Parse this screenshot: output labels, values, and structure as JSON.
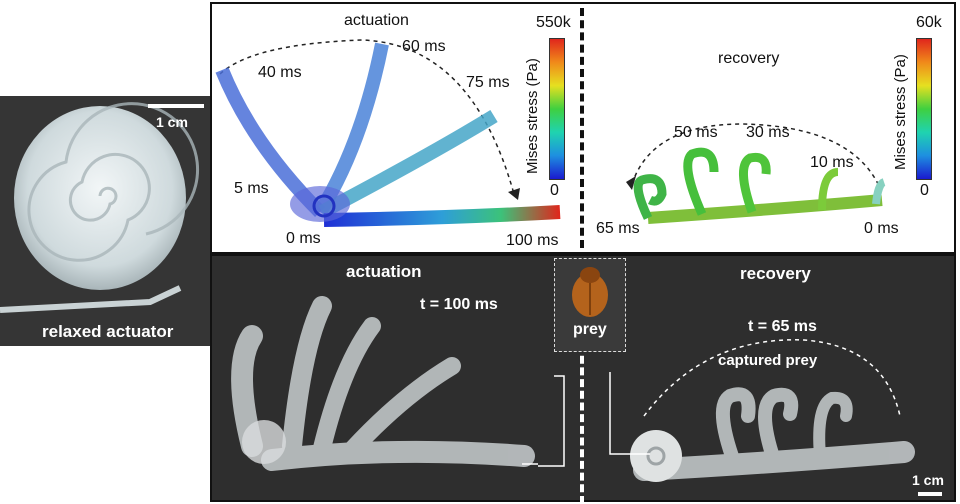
{
  "left_photo": {
    "scale_label": "1 cm",
    "caption": "relaxed actuator"
  },
  "simulation": {
    "actuation": {
      "title": "actuation",
      "times": [
        "40 ms",
        "60 ms",
        "75 ms",
        "5 ms",
        "0 ms",
        "100 ms"
      ],
      "colorbar": {
        "title": "Mises stress (Pa)",
        "max": "550k",
        "min": "0"
      }
    },
    "recovery": {
      "title": "recovery",
      "times": [
        "50 ms",
        "30 ms",
        "10 ms",
        "65 ms",
        "0 ms"
      ],
      "colorbar": {
        "title": "Mises stress (Pa)",
        "max": "60k",
        "min": "0"
      }
    }
  },
  "experiment": {
    "actuation": {
      "title": "actuation",
      "time": "t = 100 ms"
    },
    "prey_label": "prey",
    "recovery": {
      "title": "recovery",
      "time": "t = 65 ms",
      "annotation": "captured prey"
    },
    "scale_label": "1 cm"
  },
  "colors": {
    "sim_panel_bg": "#ffffff",
    "photo_bg": "#2f2f2f",
    "stress_high": "#e0261c",
    "stress_low": "#1a1ad0"
  }
}
